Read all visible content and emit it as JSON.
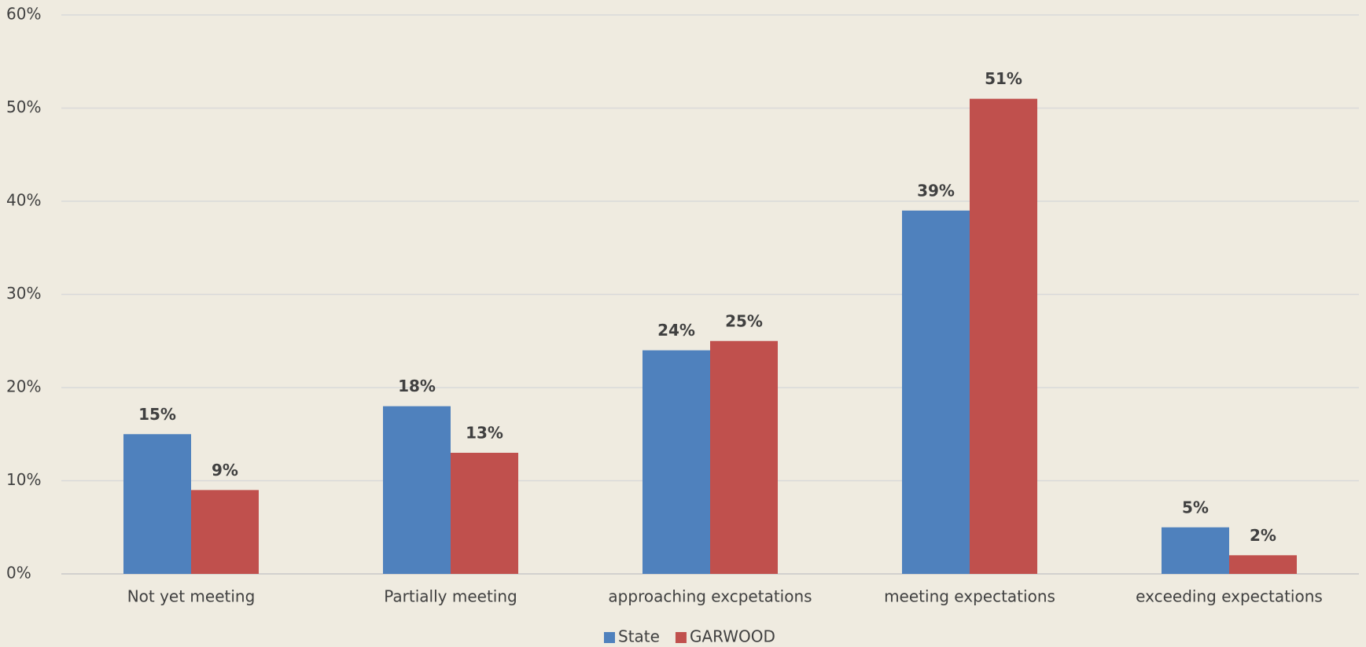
{
  "chart_data": {
    "type": "bar",
    "categories": [
      "Not yet meeting",
      "Partially meeting",
      "approaching excpetations",
      "meeting expectations",
      "exceeding expectations"
    ],
    "series": [
      {
        "name": "State",
        "color": "#4f81bd",
        "values": [
          15,
          18,
          24,
          39,
          5
        ],
        "value_labels": [
          "15%",
          "18%",
          "24%",
          "39%",
          "5%"
        ]
      },
      {
        "name": "GARWOOD",
        "color": "#c0504d",
        "values": [
          9,
          13,
          25,
          51,
          2
        ],
        "value_labels": [
          "9%",
          "13%",
          "25%",
          "51%",
          "2%"
        ]
      }
    ],
    "ylim": [
      0,
      60
    ],
    "yticks": [
      {
        "value": 0,
        "label": "0%"
      },
      {
        "value": 10,
        "label": "10%"
      },
      {
        "value": 20,
        "label": "20%"
      },
      {
        "value": 30,
        "label": "30%"
      },
      {
        "value": 40,
        "label": "40%"
      },
      {
        "value": 50,
        "label": "50%"
      },
      {
        "value": 60,
        "label": "60%"
      }
    ],
    "grid": true,
    "legend": "bottom"
  }
}
